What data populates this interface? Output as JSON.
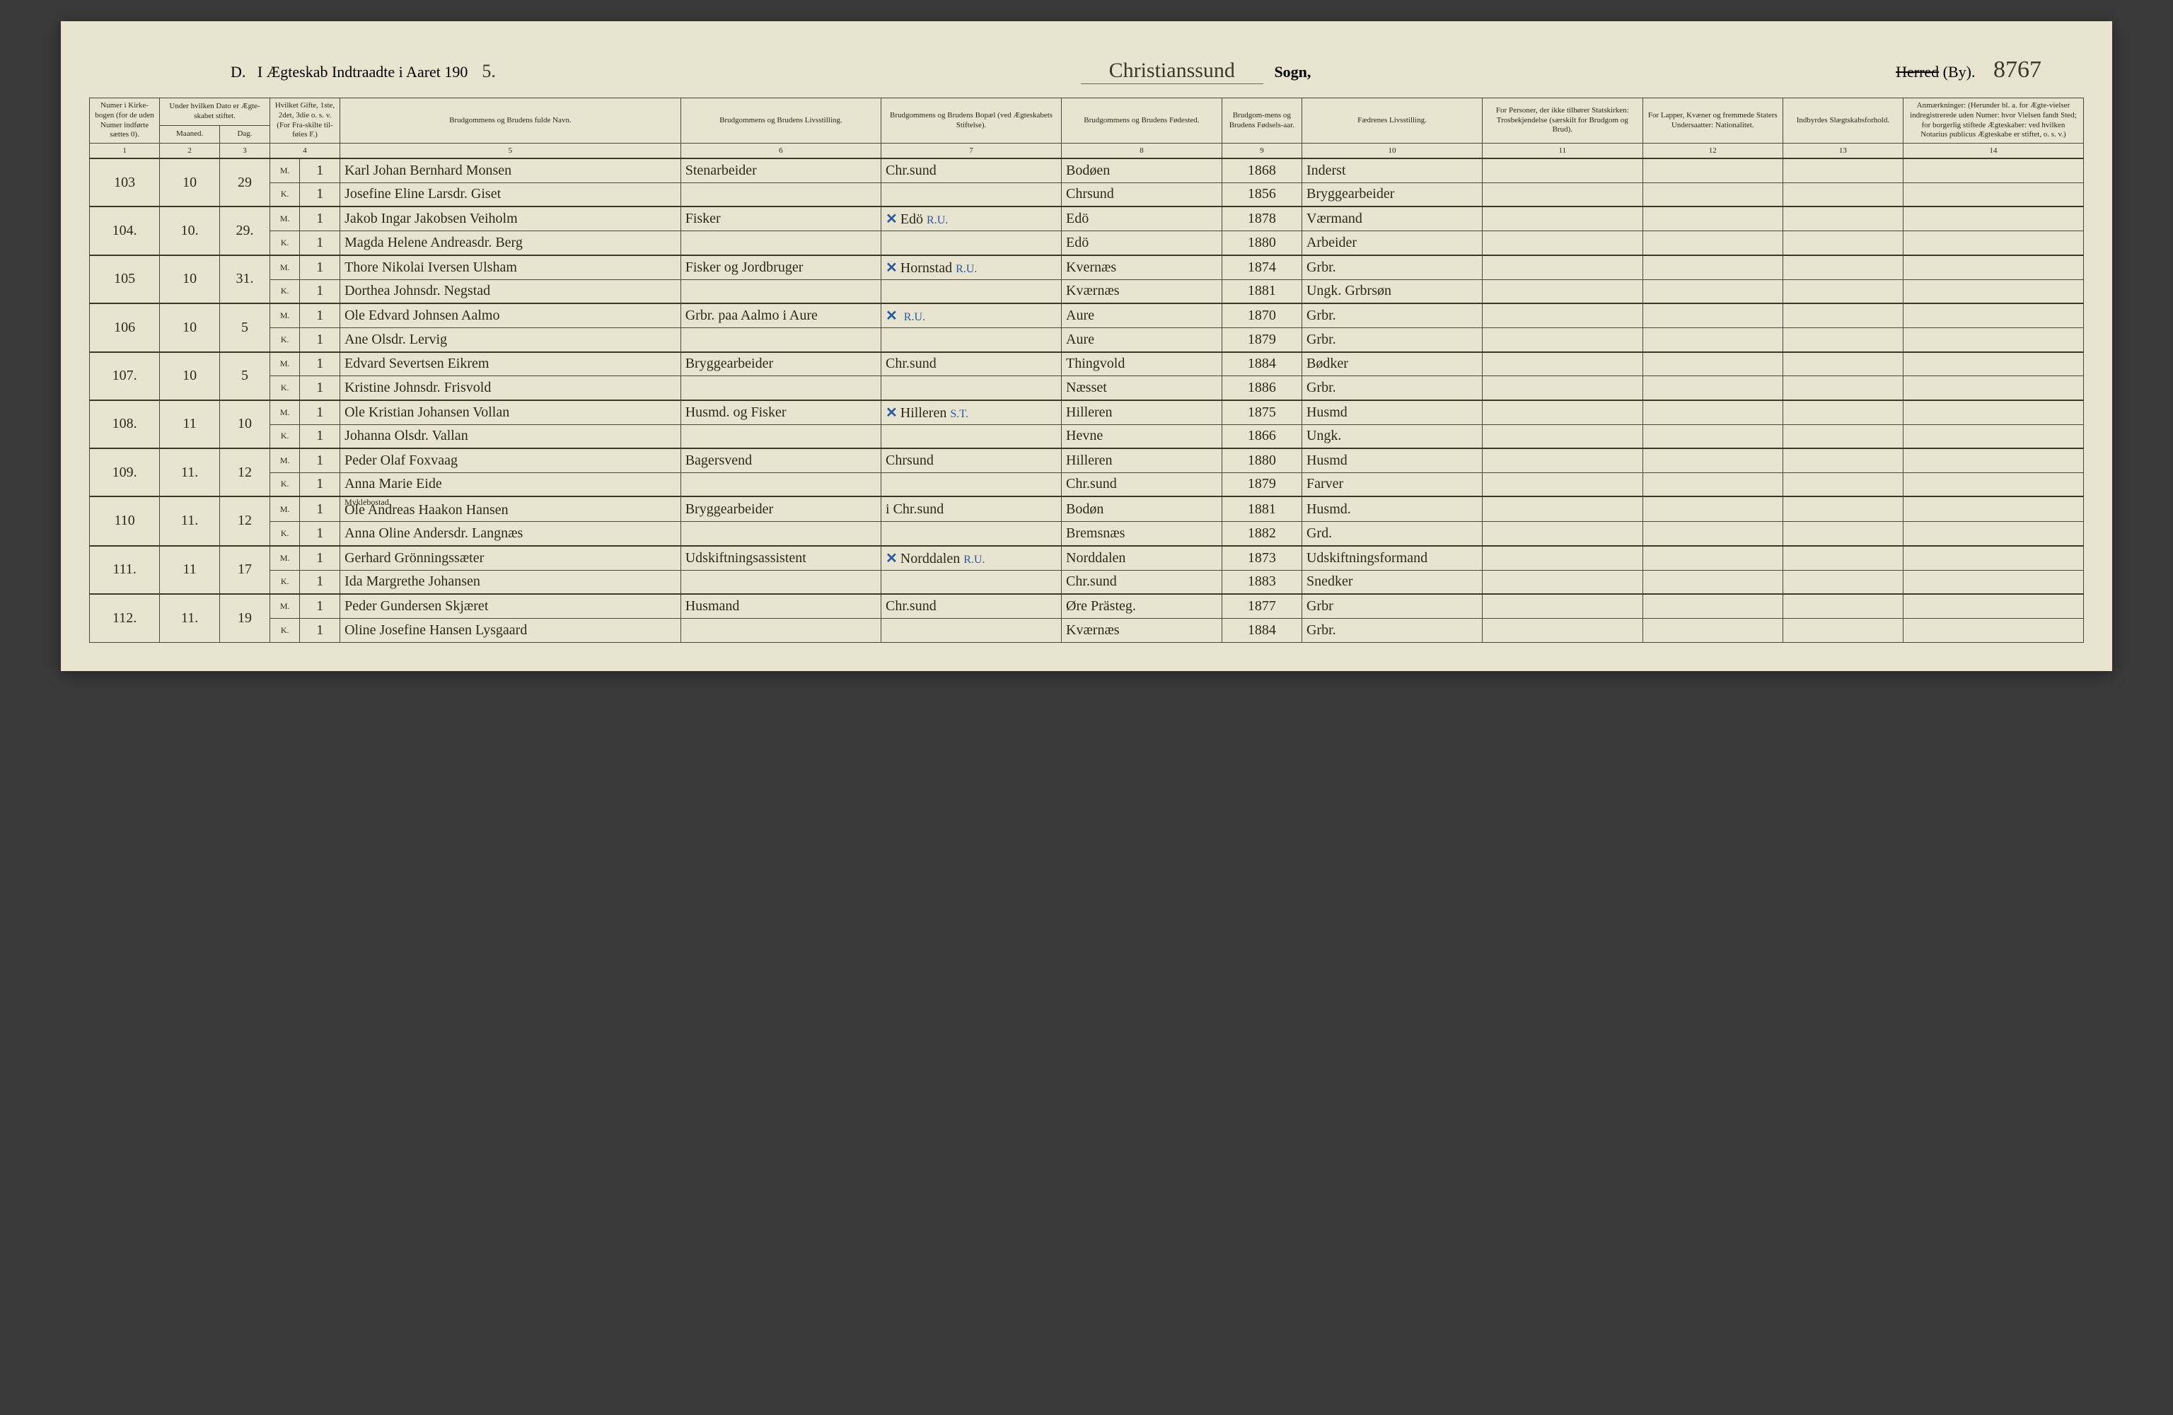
{
  "title": {
    "prefix": "D.",
    "main": "I Ægteskab Indtraadte i Aaret 190",
    "year_suffix_script": "5.",
    "parish_script": "Christianssund",
    "sogn_label": "Sogn,",
    "herred_strike": "Herred",
    "by_label": "(By).",
    "page_number_script": "8767"
  },
  "headers": {
    "c1": "Numer i Kirke-bogen (for de uden Numer indførte sættes 0).",
    "c2_top": "Under hvilken Dato er Ægte-skabet stiftet.",
    "c2a": "Maaned.",
    "c2b": "Dag.",
    "c4": "Hvilket Gifte, 1ste, 2det, 3die o. s. v. (For Fra-skilte til-føies F.)",
    "c5": "Brudgommens og Brudens fulde Navn.",
    "c6": "Brudgommens og Brudens Livsstilling.",
    "c7": "Brudgommens og Brudens Bopæl (ved Ægteskabets Stiftelse).",
    "c8": "Brudgommens og Brudens Fødested.",
    "c9": "Brudgom-mens og Brudens Fødsels-aar.",
    "c10": "Fædrenes Livsstilling.",
    "c11": "For Personer, der ikke tilhører Statskirken: Trosbekjendelse (særskilt for Brudgom og Brud).",
    "c12": "For Lapper, Kvæner og fremmede Staters Undersaatter: Nationalitet.",
    "c13": "Indbyrdes Slægtskabsforhold.",
    "c14": "Anmærkninger: (Herunder bl. a. for Ægte-vielser indregistrerede uden Numer: hvor Vielsen fandt Sted; for borgerlig stiftede Ægteskaber: ved hvilken Notarius publicus Ægteskabe er stiftet, o. s. v.)"
  },
  "colnums": [
    "1",
    "2",
    "3",
    "4",
    "5",
    "6",
    "7",
    "8",
    "9",
    "10",
    "11",
    "12",
    "13",
    "14"
  ],
  "rows": [
    {
      "n": "103",
      "m": "10",
      "d": "29",
      "g": "M.",
      "gn": "1",
      "name": "Karl Johan Bernhard Monsen",
      "stilling": "Stenarbeider",
      "bopael": "Chr.sund",
      "fodested": "Bodøen",
      "aar": "1868",
      "faedre": "Inderst"
    },
    {
      "g": "K.",
      "gn": "1",
      "name": "Josefine Eline Larsdr. Giset",
      "fodested": "Chrsund",
      "aar": "1856",
      "faedre": "Bryggearbeider"
    },
    {
      "n": "104.",
      "m": "10.",
      "d": "29.",
      "g": "M.",
      "gn": "1",
      "name": "Jakob Ingar Jakobsen Veiholm",
      "stilling": "Fisker",
      "bopael": "Edö",
      "bopael_mark": "✕",
      "bopael_note": "R.U.",
      "fodested": "Edö",
      "aar": "1878",
      "faedre": "Værmand"
    },
    {
      "g": "K.",
      "gn": "1",
      "name": "Magda Helene Andreasdr. Berg",
      "fodested": "Edö",
      "aar": "1880",
      "faedre": "Arbeider"
    },
    {
      "n": "105",
      "m": "10",
      "d": "31.",
      "g": "M.",
      "gn": "1",
      "name": "Thore Nikolai Iversen Ulsham",
      "stilling": "Fisker og Jordbruger",
      "bopael": "Hornstad",
      "bopael_mark": "✕",
      "bopael_note": "R.U.",
      "fodested": "Kvernæs",
      "aar": "1874",
      "faedre": "Grbr."
    },
    {
      "g": "K.",
      "gn": "1",
      "name": "Dorthea Johnsdr. Negstad",
      "fodested": "Kværnæs",
      "aar": "1881",
      "faedre": "Ungk. Grbrsøn"
    },
    {
      "n": "106",
      "m": "10",
      "d": "5",
      "g": "M.",
      "gn": "1",
      "name": "Ole Edvard Johnsen Aalmo",
      "stilling": "Grbr. paa Aalmo i Aure",
      "bopael_mark": "✕",
      "bopael_note": "R.U.",
      "fodested": "Aure",
      "aar": "1870",
      "faedre": "Grbr."
    },
    {
      "g": "K.",
      "gn": "1",
      "name": "Ane Olsdr. Lervig",
      "fodested": "Aure",
      "aar": "1879",
      "faedre": "Grbr."
    },
    {
      "n": "107.",
      "m": "10",
      "d": "5",
      "g": "M.",
      "gn": "1",
      "name": "Edvard Severtsen Eikrem",
      "stilling": "Bryggearbeider",
      "bopael": "Chr.sund",
      "fodested": "Thingvold",
      "aar": "1884",
      "faedre": "Bødker"
    },
    {
      "g": "K.",
      "gn": "1",
      "name": "Kristine Johnsdr. Frisvold",
      "fodested": "Næsset",
      "aar": "1886",
      "faedre": "Grbr."
    },
    {
      "n": "108.",
      "m": "11",
      "d": "10",
      "g": "M.",
      "gn": "1",
      "name": "Ole Kristian Johansen Vollan",
      "stilling": "Husmd. og Fisker",
      "bopael": "Hilleren",
      "bopael_mark": "✕",
      "bopael_note": "S.T.",
      "fodested": "Hilleren",
      "aar": "1875",
      "faedre": "Husmd"
    },
    {
      "g": "K.",
      "gn": "1",
      "name": "Johanna Olsdr. Vallan",
      "fodested": "Hevne",
      "aar": "1866",
      "faedre": "Ungk."
    },
    {
      "n": "109.",
      "m": "11.",
      "d": "12",
      "g": "M.",
      "gn": "1",
      "name": "Peder Olaf Foxvaag",
      "stilling": "Bagersvend",
      "bopael": "Chrsund",
      "fodested": "Hilleren",
      "aar": "1880",
      "faedre": "Husmd"
    },
    {
      "g": "K.",
      "gn": "1",
      "name": "Anna Marie Eide",
      "fodested": "Chr.sund",
      "aar": "1879",
      "faedre": "Farver"
    },
    {
      "n": "110",
      "m": "11.",
      "d": "12",
      "g": "M.",
      "gn": "1",
      "name": "Ole Andreas Haakon Hansen",
      "name_above": "Myklebostad",
      "stilling": "Bryggearbeider",
      "bopael": "i Chr.sund",
      "fodested": "Bodøn",
      "aar": "1881",
      "faedre": "Husmd."
    },
    {
      "g": "K.",
      "gn": "1",
      "name": "Anna Oline Andersdr. Langnæs",
      "fodested": "Bremsnæs",
      "aar": "1882",
      "faedre": "Grd."
    },
    {
      "n": "111.",
      "m": "11",
      "d": "17",
      "g": "M.",
      "gn": "1",
      "name": "Gerhard Grönningssæter",
      "stilling": "Udskiftningsassistent",
      "bopael": "Norddalen",
      "bopael_mark": "✕",
      "bopael_note": "R.U.",
      "fodested": "Norddalen",
      "aar": "1873",
      "faedre": "Udskiftningsformand"
    },
    {
      "g": "K.",
      "gn": "1",
      "name": "Ida Margrethe Johansen",
      "fodested": "Chr.sund",
      "aar": "1883",
      "faedre": "Snedker"
    },
    {
      "n": "112.",
      "m": "11.",
      "d": "19",
      "g": "M.",
      "gn": "1",
      "name": "Peder Gundersen Skjæret",
      "stilling": "Husmand",
      "bopael": "Chr.sund",
      "fodested": "Øre Prästeg.",
      "aar": "1877",
      "faedre": "Grbr"
    },
    {
      "g": "K.",
      "gn": "1",
      "name": "Oline Josefine Hansen Lysgaard",
      "fodested": "Kværnæs",
      "aar": "1884",
      "faedre": "Grbr."
    }
  ]
}
